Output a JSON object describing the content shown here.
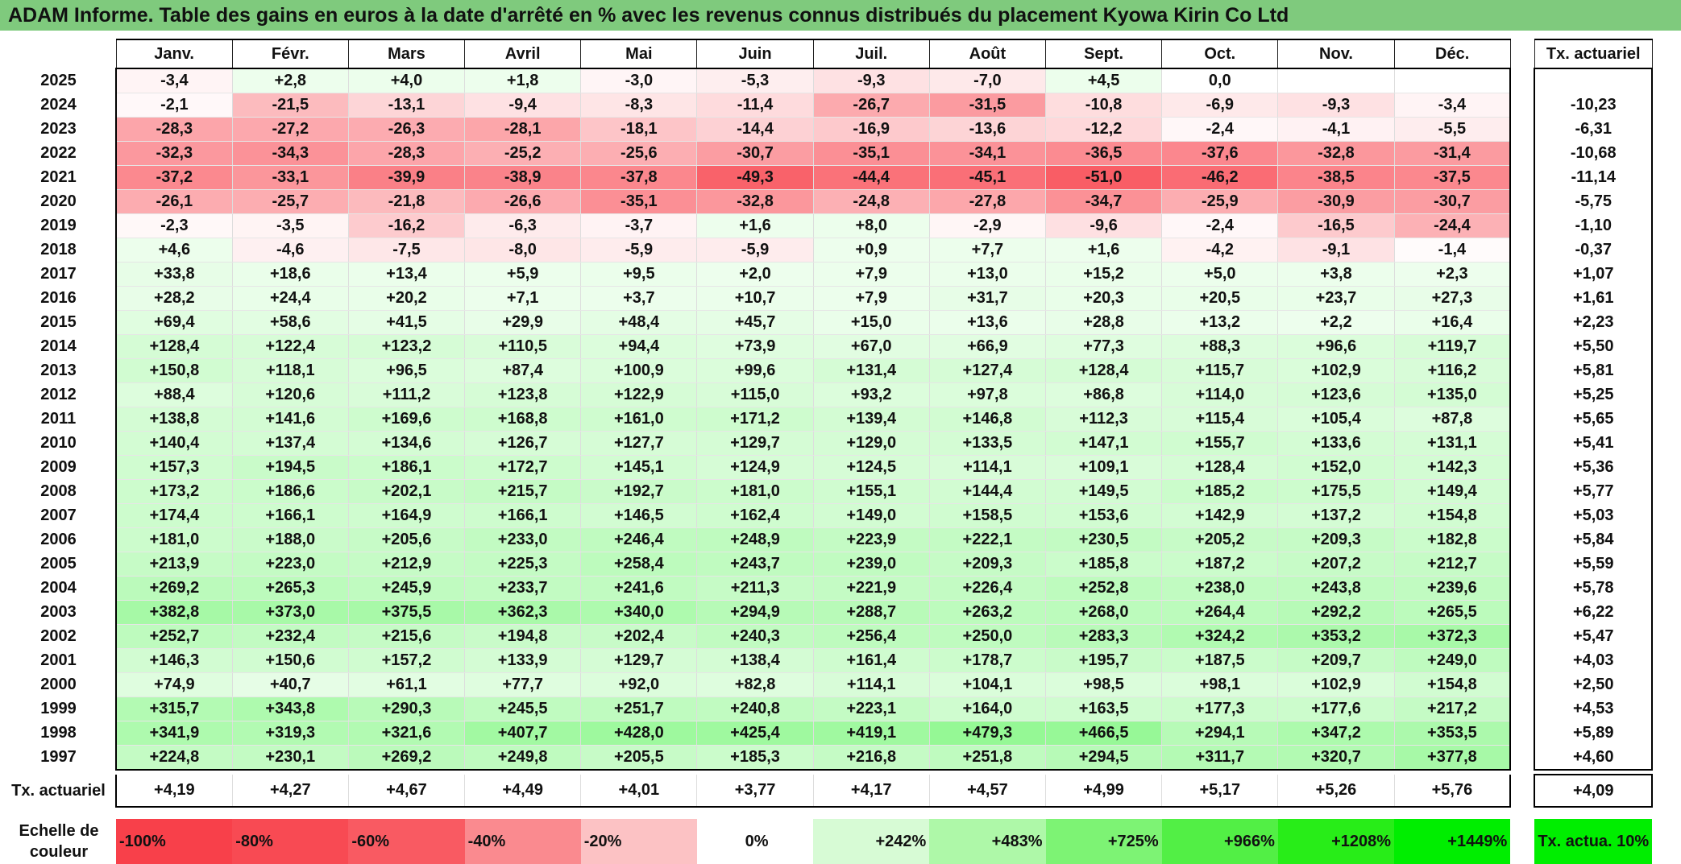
{
  "title": "ADAM Informe. Table des gains en euros à la date d'arrêté en % avec les revenus connus distribués du placement Kyowa Kirin Co Ltd",
  "colors": {
    "header_green": "#7fca7d",
    "neg_strong": "#f8404a",
    "pos_strong": "#00ee00"
  },
  "chart_data": {
    "type": "heatmap",
    "title": "ADAM Informe. Table des gains en euros à la date d'arrêté en % avec les revenus connus distribués du placement Kyowa Kirin Co Ltd",
    "months": [
      "Janv.",
      "Févr.",
      "Mars",
      "Avril",
      "Mai",
      "Juin",
      "Juil.",
      "Août",
      "Sept.",
      "Oct.",
      "Nov.",
      "Déc."
    ],
    "rate_header": "Tx. actuariel",
    "rows": [
      {
        "year": "2025",
        "values": [
          "-3,4",
          "+2,8",
          "+4,0",
          "+1,8",
          "-3,0",
          "-5,3",
          "-9,3",
          "-7,0",
          "+4,5",
          "0,0",
          "",
          ""
        ],
        "rate": ""
      },
      {
        "year": "2024",
        "values": [
          "-2,1",
          "-21,5",
          "-13,1",
          "-9,4",
          "-8,3",
          "-11,4",
          "-26,7",
          "-31,5",
          "-10,8",
          "-6,9",
          "-9,3",
          "-3,4"
        ],
        "rate": "-10,23"
      },
      {
        "year": "2023",
        "values": [
          "-28,3",
          "-27,2",
          "-26,3",
          "-28,1",
          "-18,1",
          "-14,4",
          "-16,9",
          "-13,6",
          "-12,2",
          "-2,4",
          "-4,1",
          "-5,5"
        ],
        "rate": "-6,31"
      },
      {
        "year": "2022",
        "values": [
          "-32,3",
          "-34,3",
          "-28,3",
          "-25,2",
          "-25,6",
          "-30,7",
          "-35,1",
          "-34,1",
          "-36,5",
          "-37,6",
          "-32,8",
          "-31,4"
        ],
        "rate": "-10,68"
      },
      {
        "year": "2021",
        "values": [
          "-37,2",
          "-33,1",
          "-39,9",
          "-38,9",
          "-37,8",
          "-49,3",
          "-44,4",
          "-45,1",
          "-51,0",
          "-46,2",
          "-38,5",
          "-37,5"
        ],
        "rate": "-11,14"
      },
      {
        "year": "2020",
        "values": [
          "-26,1",
          "-25,7",
          "-21,8",
          "-26,6",
          "-35,1",
          "-32,8",
          "-24,8",
          "-27,8",
          "-34,7",
          "-25,9",
          "-30,9",
          "-30,7"
        ],
        "rate": "-5,75"
      },
      {
        "year": "2019",
        "values": [
          "-2,3",
          "-3,5",
          "-16,2",
          "-6,3",
          "-3,7",
          "+1,6",
          "+8,0",
          "-2,9",
          "-9,6",
          "-2,4",
          "-16,5",
          "-24,4"
        ],
        "rate": "-1,10"
      },
      {
        "year": "2018",
        "values": [
          "+4,6",
          "-4,6",
          "-7,5",
          "-8,0",
          "-5,9",
          "-5,9",
          "+0,9",
          "+7,7",
          "+1,6",
          "-4,2",
          "-9,1",
          "-1,4"
        ],
        "rate": "-0,37"
      },
      {
        "year": "2017",
        "values": [
          "+33,8",
          "+18,6",
          "+13,4",
          "+5,9",
          "+9,5",
          "+2,0",
          "+7,9",
          "+13,0",
          "+15,2",
          "+5,0",
          "+3,8",
          "+2,3"
        ],
        "rate": "+1,07"
      },
      {
        "year": "2016",
        "values": [
          "+28,2",
          "+24,4",
          "+20,2",
          "+7,1",
          "+3,7",
          "+10,7",
          "+7,9",
          "+31,7",
          "+20,3",
          "+20,5",
          "+23,7",
          "+27,3"
        ],
        "rate": "+1,61"
      },
      {
        "year": "2015",
        "values": [
          "+69,4",
          "+58,6",
          "+41,5",
          "+29,9",
          "+48,4",
          "+45,7",
          "+15,0",
          "+13,6",
          "+28,8",
          "+13,2",
          "+2,2",
          "+16,4"
        ],
        "rate": "+2,23"
      },
      {
        "year": "2014",
        "values": [
          "+128,4",
          "+122,4",
          "+123,2",
          "+110,5",
          "+94,4",
          "+73,9",
          "+67,0",
          "+66,9",
          "+77,3",
          "+88,3",
          "+96,6",
          "+119,7"
        ],
        "rate": "+5,50"
      },
      {
        "year": "2013",
        "values": [
          "+150,8",
          "+118,1",
          "+96,5",
          "+87,4",
          "+100,9",
          "+99,6",
          "+131,4",
          "+127,4",
          "+128,4",
          "+115,7",
          "+102,9",
          "+116,2"
        ],
        "rate": "+5,81"
      },
      {
        "year": "2012",
        "values": [
          "+88,4",
          "+120,6",
          "+111,2",
          "+123,8",
          "+122,9",
          "+115,0",
          "+93,2",
          "+97,8",
          "+86,8",
          "+114,0",
          "+123,6",
          "+135,0"
        ],
        "rate": "+5,25"
      },
      {
        "year": "2011",
        "values": [
          "+138,8",
          "+141,6",
          "+169,6",
          "+168,8",
          "+161,0",
          "+171,2",
          "+139,4",
          "+146,8",
          "+112,3",
          "+115,4",
          "+105,4",
          "+87,8"
        ],
        "rate": "+5,65"
      },
      {
        "year": "2010",
        "values": [
          "+140,4",
          "+137,4",
          "+134,6",
          "+126,7",
          "+127,7",
          "+129,7",
          "+129,0",
          "+133,5",
          "+147,1",
          "+155,7",
          "+133,6",
          "+131,1"
        ],
        "rate": "+5,41"
      },
      {
        "year": "2009",
        "values": [
          "+157,3",
          "+194,5",
          "+186,1",
          "+172,7",
          "+145,1",
          "+124,9",
          "+124,5",
          "+114,1",
          "+109,1",
          "+128,4",
          "+152,0",
          "+142,3"
        ],
        "rate": "+5,36"
      },
      {
        "year": "2008",
        "values": [
          "+173,2",
          "+186,6",
          "+202,1",
          "+215,7",
          "+192,7",
          "+181,0",
          "+155,1",
          "+144,4",
          "+149,5",
          "+185,2",
          "+175,5",
          "+149,4"
        ],
        "rate": "+5,77"
      },
      {
        "year": "2007",
        "values": [
          "+174,4",
          "+166,1",
          "+164,9",
          "+166,1",
          "+146,5",
          "+162,4",
          "+149,0",
          "+158,5",
          "+153,6",
          "+142,9",
          "+137,2",
          "+154,8"
        ],
        "rate": "+5,03"
      },
      {
        "year": "2006",
        "values": [
          "+181,0",
          "+188,0",
          "+205,6",
          "+233,0",
          "+246,4",
          "+248,9",
          "+223,9",
          "+222,1",
          "+230,5",
          "+205,2",
          "+209,3",
          "+182,8"
        ],
        "rate": "+5,84"
      },
      {
        "year": "2005",
        "values": [
          "+213,9",
          "+223,0",
          "+212,9",
          "+225,3",
          "+258,4",
          "+243,7",
          "+239,0",
          "+209,3",
          "+185,8",
          "+187,2",
          "+207,2",
          "+212,7"
        ],
        "rate": "+5,59"
      },
      {
        "year": "2004",
        "values": [
          "+269,2",
          "+265,3",
          "+245,9",
          "+233,7",
          "+241,6",
          "+211,3",
          "+221,9",
          "+226,4",
          "+252,8",
          "+238,0",
          "+243,8",
          "+239,6"
        ],
        "rate": "+5,78"
      },
      {
        "year": "2003",
        "values": [
          "+382,8",
          "+373,0",
          "+375,5",
          "+362,3",
          "+340,0",
          "+294,9",
          "+288,7",
          "+263,2",
          "+268,0",
          "+264,4",
          "+292,2",
          "+265,5"
        ],
        "rate": "+6,22"
      },
      {
        "year": "2002",
        "values": [
          "+252,7",
          "+232,4",
          "+215,6",
          "+194,8",
          "+202,4",
          "+240,3",
          "+256,4",
          "+250,0",
          "+283,3",
          "+324,2",
          "+353,2",
          "+372,3"
        ],
        "rate": "+5,47"
      },
      {
        "year": "2001",
        "values": [
          "+146,3",
          "+150,6",
          "+157,2",
          "+133,9",
          "+129,7",
          "+138,4",
          "+161,4",
          "+178,7",
          "+195,7",
          "+187,5",
          "+209,7",
          "+249,0"
        ],
        "rate": "+4,03"
      },
      {
        "year": "2000",
        "values": [
          "+74,9",
          "+40,7",
          "+61,1",
          "+77,7",
          "+92,0",
          "+82,8",
          "+114,1",
          "+104,1",
          "+98,5",
          "+98,1",
          "+102,9",
          "+154,8"
        ],
        "rate": "+2,50"
      },
      {
        "year": "1999",
        "values": [
          "+315,7",
          "+343,8",
          "+290,3",
          "+245,5",
          "+251,7",
          "+240,8",
          "+223,1",
          "+164,0",
          "+163,5",
          "+177,3",
          "+177,6",
          "+217,2"
        ],
        "rate": "+4,53"
      },
      {
        "year": "1998",
        "values": [
          "+341,9",
          "+319,3",
          "+321,6",
          "+407,7",
          "+428,0",
          "+425,4",
          "+419,1",
          "+479,3",
          "+466,5",
          "+294,1",
          "+347,2",
          "+353,5"
        ],
        "rate": "+5,89"
      },
      {
        "year": "1997",
        "values": [
          "+224,8",
          "+230,1",
          "+269,2",
          "+249,8",
          "+205,5",
          "+185,3",
          "+216,8",
          "+251,8",
          "+294,5",
          "+311,7",
          "+320,7",
          "+377,8"
        ],
        "rate": "+4,60"
      }
    ],
    "actuarial_row": {
      "label": "Tx. actuariel",
      "values": [
        "+4,19",
        "+4,27",
        "+4,67",
        "+4,49",
        "+4,01",
        "+3,77",
        "+4,17",
        "+4,57",
        "+4,99",
        "+5,17",
        "+5,26",
        "+5,76"
      ],
      "total": "+4,09"
    },
    "color_scale": {
      "label": "Echelle de couleur",
      "steps": [
        {
          "label": "-100%",
          "color": "#f8404a"
        },
        {
          "label": "-80%",
          "color": "#f84a53"
        },
        {
          "label": "-60%",
          "color": "#f95a62"
        },
        {
          "label": "-40%",
          "color": "#fa8a8f"
        },
        {
          "label": "-20%",
          "color": "#fcc2c4"
        },
        {
          "label": "0%",
          "color": "#ffffff"
        },
        {
          "label": "+242%",
          "color": "#d7fbd5"
        },
        {
          "label": "+483%",
          "color": "#aef8a8"
        },
        {
          "label": "+725%",
          "color": "#7df374"
        },
        {
          "label": "+966%",
          "color": "#52ef45"
        },
        {
          "label": "+1208%",
          "color": "#28ed18"
        },
        {
          "label": "+1449%",
          "color": "#00ee00"
        }
      ],
      "rate_label": "Tx. actua. 10%",
      "rate_color": "#00ee00"
    }
  }
}
